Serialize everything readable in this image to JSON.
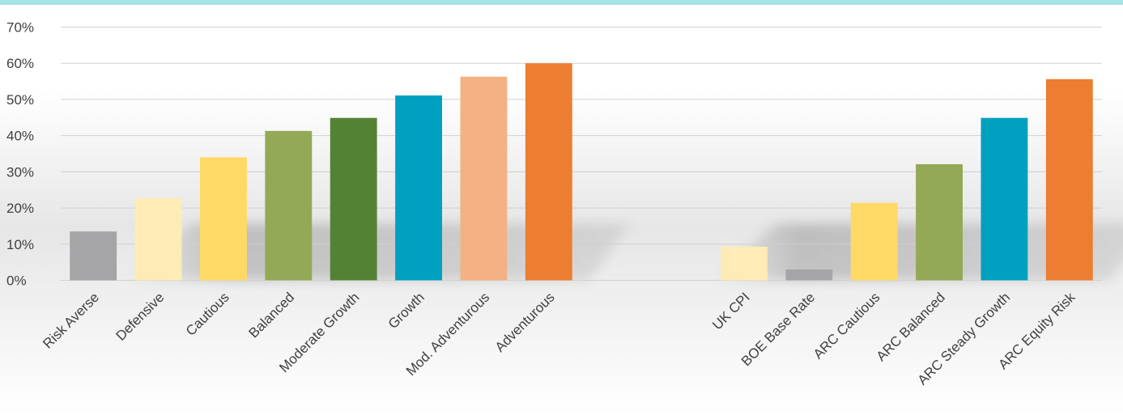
{
  "theme": {
    "top_band": "#a6e3e8",
    "grid": "#d0d0d0",
    "text": "#404040"
  },
  "chart_data": {
    "type": "bar",
    "title": "",
    "xlabel": "",
    "ylabel": "",
    "ylim": [
      0,
      70
    ],
    "ytick_values": [
      0,
      10,
      20,
      30,
      40,
      50,
      60,
      70
    ],
    "ytick_labels": [
      "0%",
      "10%",
      "20%",
      "30%",
      "40%",
      "50%",
      "60%",
      "70%"
    ],
    "grid": true,
    "legend": "none",
    "categories": [
      "Risk Averse",
      "Defensive",
      "Cautious",
      "Balanced",
      "Moderate Growth",
      "Growth",
      "Mod. Adventurous",
      "Adventurous",
      "",
      "",
      "UK CPI",
      "BOE Base Rate",
      "ARC Cautious",
      "ARC Balanced",
      "ARC Steady Growth",
      "ARC Equity Risk"
    ],
    "values": [
      13.5,
      22.7,
      34,
      41.3,
      44.9,
      51.1,
      56.3,
      60,
      null,
      null,
      9.3,
      3,
      21.4,
      32.1,
      44.9,
      55.6
    ],
    "colors": [
      "#a5a5a7",
      "#ffebb5",
      "#ffd966",
      "#93a956",
      "#548235",
      "#00a0c0",
      "#f4b183",
      "#ed7d31",
      null,
      null,
      "#ffebb5",
      "#a5a5a7",
      "#ffd966",
      "#93a956",
      "#00a0c0",
      "#ed7d31"
    ]
  }
}
